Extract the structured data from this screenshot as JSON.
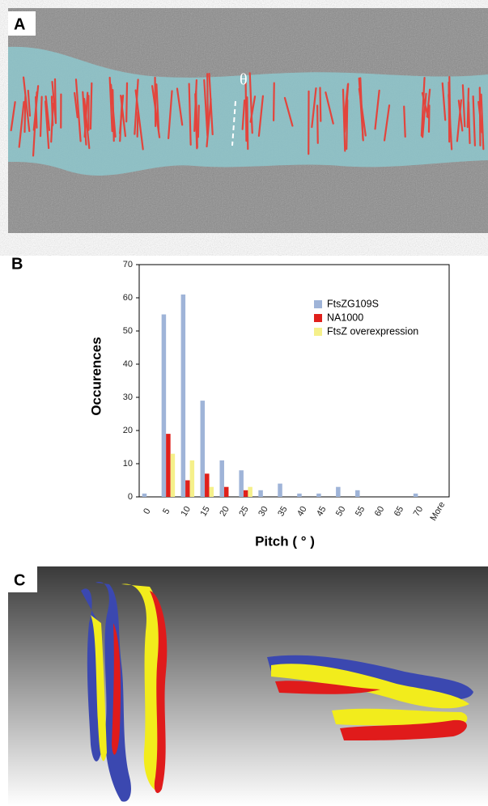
{
  "panels": [
    "A",
    "B",
    "C"
  ],
  "annotation": "θ",
  "chart_data": {
    "type": "bar",
    "xlabel": "Pitch ( ° )",
    "ylabel": "Occurences",
    "categories": [
      "0",
      "5",
      "10",
      "15",
      "20",
      "25",
      "30",
      "35",
      "40",
      "45",
      "50",
      "55",
      "60",
      "65",
      "70",
      "More"
    ],
    "series": [
      {
        "name": "FtsZG109S",
        "color": "#9fb4d8",
        "values": [
          1,
          55,
          61,
          29,
          11,
          8,
          2,
          4,
          1,
          1,
          3,
          2,
          0,
          0,
          1,
          0
        ]
      },
      {
        "name": "NA1000",
        "color": "#e0201b",
        "values": [
          0,
          19,
          5,
          7,
          3,
          2,
          0,
          0,
          0,
          0,
          0,
          0,
          0,
          0,
          0,
          0
        ]
      },
      {
        "name": "FtsZ overexpression",
        "color": "#f5f08a",
        "values": [
          0,
          13,
          11,
          3,
          0,
          3,
          0,
          0,
          0,
          0,
          0,
          0,
          0,
          0,
          0,
          0
        ]
      }
    ],
    "ylim": [
      0,
      70
    ],
    "yticks": [
      0,
      10,
      20,
      30,
      40,
      50,
      60,
      70
    ],
    "legend": "upper right"
  }
}
